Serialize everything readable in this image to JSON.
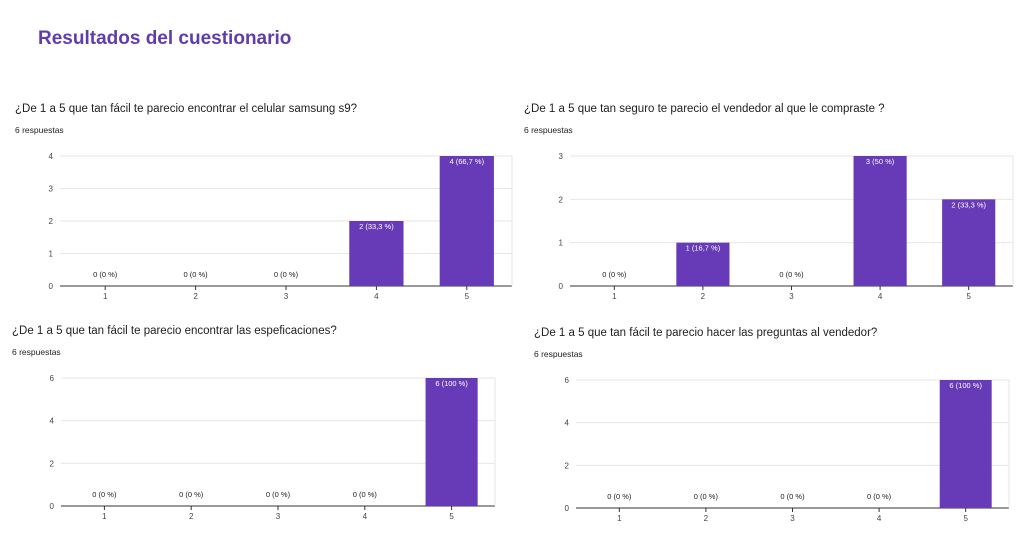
{
  "page": {
    "title": "Resultados del cuestionario"
  },
  "colors": {
    "bar": "#673ab7",
    "grid": "#e6e6e6",
    "axis": "#333333",
    "title": "#5f3dad"
  },
  "chart_data": [
    {
      "type": "bar",
      "title": "¿De 1 a 5 que tan fácil te parecio encontrar el celular samsung s9?",
      "subtitle": "6 respuestas",
      "categories": [
        "1",
        "2",
        "3",
        "4",
        "5"
      ],
      "values": [
        0,
        0,
        0,
        2,
        4
      ],
      "data_labels": [
        "0 (0 %)",
        "0 (0 %)",
        "0 (0 %)",
        "2 (33,3 %)",
        "4 (66,7 %)"
      ],
      "y_ticks": [
        "0",
        "1",
        "2",
        "3",
        "4"
      ],
      "ylim": [
        0,
        4
      ],
      "grid": true
    },
    {
      "type": "bar",
      "title": "¿De 1 a 5 que tan seguro te parecio el vendedor al que le compraste ?",
      "subtitle": "6 respuestas",
      "categories": [
        "1",
        "2",
        "3",
        "4",
        "5"
      ],
      "values": [
        0,
        1,
        0,
        3,
        2
      ],
      "data_labels": [
        "0 (0 %)",
        "1 (16,7 %)",
        "0 (0 %)",
        "3 (50 %)",
        "2 (33,3 %)"
      ],
      "y_ticks": [
        "0",
        "1",
        "2",
        "3"
      ],
      "ylim": [
        0,
        3
      ],
      "grid": true
    },
    {
      "type": "bar",
      "title": "¿De 1 a 5 que tan fácil te parecio encontrar las espeficaciones?",
      "subtitle": "6 respuestas",
      "categories": [
        "1",
        "2",
        "3",
        "4",
        "5"
      ],
      "values": [
        0,
        0,
        0,
        0,
        6
      ],
      "data_labels": [
        "0 (0 %)",
        "0 (0 %)",
        "0 (0 %)",
        "0 (0 %)",
        "6 (100 %)"
      ],
      "y_ticks": [
        "0",
        "2",
        "4",
        "6"
      ],
      "ylim": [
        0,
        6
      ],
      "grid": true
    },
    {
      "type": "bar",
      "title": "¿De 1 a 5 que tan fácil te parecio hacer las preguntas al vendedor?",
      "subtitle": "6 respuestas",
      "categories": [
        "1",
        "2",
        "3",
        "4",
        "5"
      ],
      "values": [
        0,
        0,
        0,
        0,
        6
      ],
      "data_labels": [
        "0 (0 %)",
        "0 (0 %)",
        "0 (0 %)",
        "0 (0 %)",
        "6 (100 %)"
      ],
      "y_ticks": [
        "0",
        "2",
        "4",
        "6"
      ],
      "ylim": [
        0,
        6
      ],
      "grid": true
    }
  ]
}
